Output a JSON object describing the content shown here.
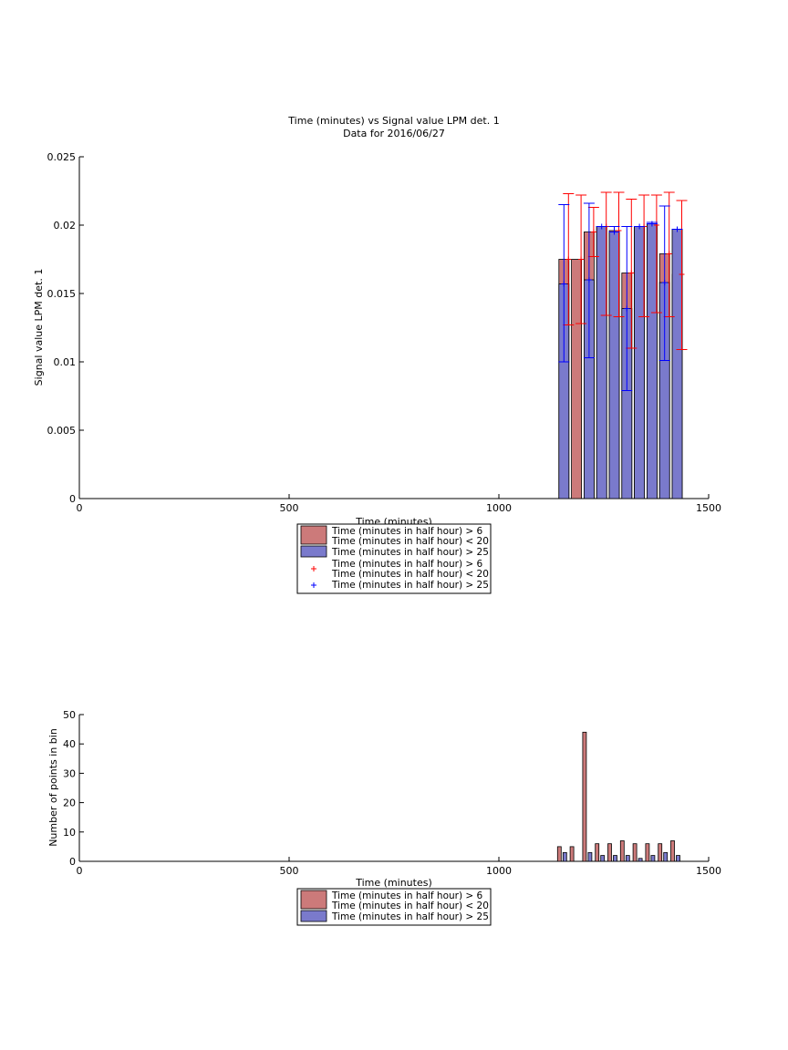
{
  "chart_data": [
    {
      "type": "bar",
      "title": "Time (minutes) vs Signal value LPM det. 1",
      "subtitle": "Data for 2016/06/27",
      "xlabel": "Time (minutes)",
      "ylabel": "Signal value LPM det. 1",
      "xlim": [
        0,
        1500
      ],
      "ylim": [
        0,
        0.025
      ],
      "xticks": [
        0,
        500,
        1000,
        1500
      ],
      "yticks": [
        0,
        0.005,
        0.01,
        0.015,
        0.02,
        0.025
      ],
      "xtick_labels": [
        "0",
        "500",
        "1000",
        "1500"
      ],
      "ytick_labels": [
        "0",
        "0.005",
        "0.01",
        "0.015",
        "0.02",
        "0.025"
      ],
      "grid": false,
      "legend_position": "below",
      "colors": {
        "series1": "#cc7a7a",
        "series2": "#7a7acc",
        "err1": "#ff0000",
        "err2": "#0000ff"
      },
      "series": [
        {
          "name": "Time (minutes in half hour) > 6\nTime (minutes in half hour) < 20",
          "x": [
            1155,
            1185,
            1215,
            1245,
            1275,
            1305,
            1335,
            1365,
            1395,
            1425
          ],
          "values": [
            0.0175,
            0.0175,
            0.0195,
            0.0199,
            0.0196,
            0.0165,
            0.0199,
            0.02,
            0.0179,
            0.0164
          ],
          "err_low": [
            0.0127,
            0.0128,
            0.0177,
            0.0134,
            0.0133,
            0.011,
            0.0133,
            0.0136,
            0.0133,
            0.0109
          ],
          "err_high": [
            0.0223,
            0.0222,
            0.0213,
            0.0224,
            0.0224,
            0.0219,
            0.0222,
            0.0222,
            0.0224,
            0.0218
          ]
        },
        {
          "name": "Time (minutes in half hour) > 25",
          "x": [
            1155,
            1215,
            1245,
            1275,
            1305,
            1335,
            1365,
            1395,
            1425
          ],
          "values": [
            0.0157,
            0.016,
            0.0199,
            0.0195,
            0.0139,
            0.0199,
            0.0201,
            0.0158,
            0.0197
          ],
          "err_low": [
            0.01,
            0.0103,
            0.0199,
            0.0195,
            0.0079,
            0.0199,
            0.0201,
            0.0101,
            0.0197
          ],
          "err_high": [
            0.0215,
            0.0216,
            0.0199,
            0.0199,
            0.0199,
            0.0199,
            0.0202,
            0.0214,
            0.0197
          ]
        }
      ],
      "legend": [
        "Time (minutes in half hour) > 6\nTime (minutes in half hour) < 20",
        "Time (minutes in half hour) > 25",
        "Time (minutes in half hour) > 6\nTime (minutes in half hour) < 20",
        "Time (minutes in half hour) > 25"
      ]
    },
    {
      "type": "bar",
      "title": "",
      "xlabel": "Time (minutes)",
      "ylabel": "Number of points in bin",
      "xlim": [
        0,
        1500
      ],
      "ylim": [
        0,
        50
      ],
      "xticks": [
        0,
        500,
        1000,
        1500
      ],
      "yticks": [
        0,
        10,
        20,
        30,
        40,
        50
      ],
      "xtick_labels": [
        "0",
        "500",
        "1000",
        "1500"
      ],
      "ytick_labels": [
        "0",
        "10",
        "20",
        "30",
        "40",
        "50"
      ],
      "grid": false,
      "legend_position": "below",
      "series": [
        {
          "name": "Time (minutes in half hour) > 6\nTime (minutes in half hour) < 20",
          "x": [
            1155,
            1185,
            1215,
            1245,
            1275,
            1305,
            1335,
            1365,
            1395,
            1425
          ],
          "values": [
            5,
            5,
            44,
            6,
            6,
            7,
            6,
            6,
            6,
            7
          ]
        },
        {
          "name": "Time (minutes in half hour) > 25",
          "x": [
            1155,
            1215,
            1245,
            1275,
            1305,
            1335,
            1365,
            1395,
            1425
          ],
          "values": [
            3,
            3,
            2,
            2,
            2,
            1,
            2,
            3,
            2
          ]
        }
      ],
      "legend": [
        "Time (minutes in half hour) > 6\nTime (minutes in half hour) < 20",
        "Time (minutes in half hour) > 25"
      ]
    }
  ]
}
